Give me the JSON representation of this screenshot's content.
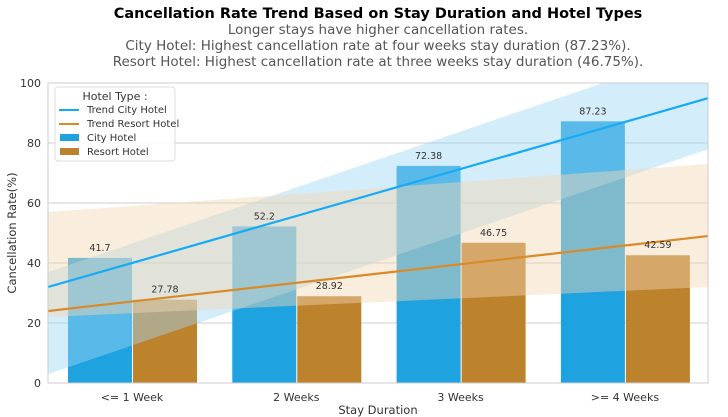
{
  "chart_data": {
    "type": "bar",
    "title": "Cancellation Rate Trend Based on Stay Duration and Hotel Types",
    "subtitle": [
      "Longer stays have higher cancellation rates.",
      "City Hotel: Highest cancellation rate at four weeks stay duration (87.23%).",
      "Resort Hotel: Highest cancellation rate at three weeks stay duration (46.75%)."
    ],
    "xlabel": "Stay Duration",
    "ylabel": "Cancellation Rate(%)",
    "ylim": [
      0,
      100
    ],
    "yticks": [
      "0",
      "20",
      "40",
      "60",
      "80",
      "100"
    ],
    "grid": "horizontal",
    "categories": [
      "<= 1 Week",
      "2 Weeks",
      "3 Weeks",
      ">= 4 Weeks"
    ],
    "series": [
      {
        "name": "City Hotel",
        "color": "#1fa2e0",
        "values": [
          41.7,
          52.2,
          72.38,
          87.23
        ]
      },
      {
        "name": "Resort Hotel",
        "color": "#bd822c",
        "values": [
          27.78,
          28.92,
          46.75,
          42.59
        ]
      }
    ],
    "trends": [
      {
        "name": "Trend City Hotel",
        "color": "#17aaf5",
        "band_color": "#9fd8f5",
        "x_range": [
          -0.51,
          3.51
        ],
        "line": [
          32,
          95
        ],
        "lower": [
          3,
          78
        ],
        "upper": [
          37,
          112
        ]
      },
      {
        "name": "Trend Resort Hotel",
        "color": "#d98a28",
        "band_color": "#f1d8b4",
        "x_range": [
          -0.51,
          3.51
        ],
        "line": [
          24,
          49
        ],
        "lower": [
          22,
          32
        ],
        "upper": [
          57,
          73
        ]
      }
    ],
    "legend": {
      "title": "Hotel Type :",
      "placement": "top-left"
    }
  }
}
